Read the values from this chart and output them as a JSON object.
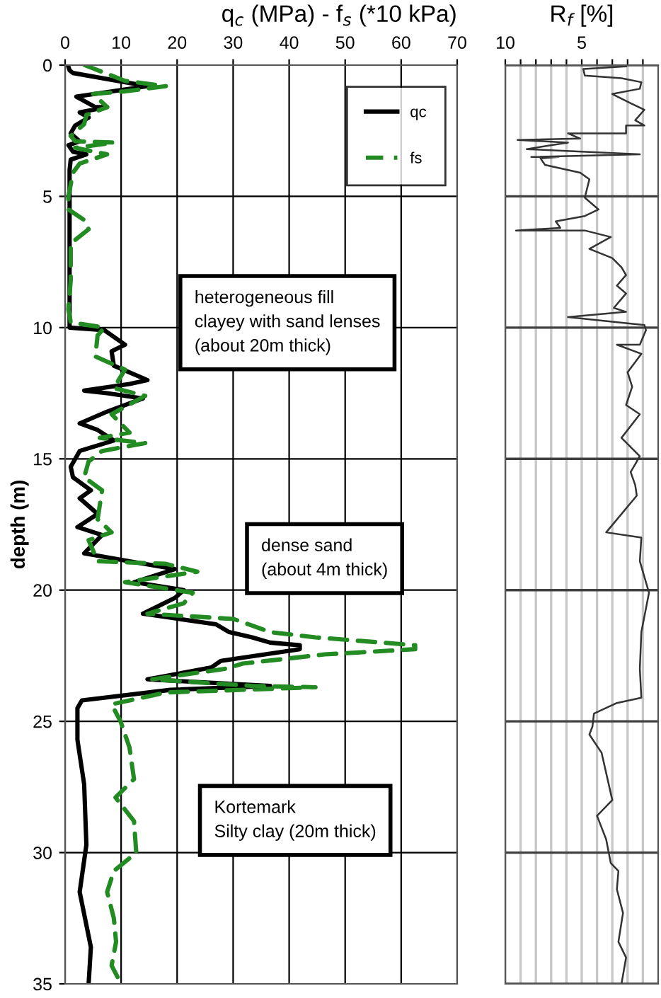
{
  "chart_data": [
    {
      "type": "line",
      "title": "q$_{c}$ (MPa) - f$_{s}$ (*10 kPa)",
      "ylabel": "depth (m)",
      "xlim": [
        0,
        70
      ],
      "xticks": [
        0,
        10,
        20,
        30,
        40,
        50,
        60,
        70
      ],
      "ylim": [
        35,
        0
      ],
      "yticks": [
        0,
        5,
        10,
        15,
        20,
        25,
        30,
        35
      ],
      "grid": true,
      "legend": "top right",
      "annotations": [
        "heterogeneous fill\nclayey with sand lenses\n(about 20m thick)",
        "dense sand\n(about 4m thick)",
        "Kortemark\nSilty clay (20m thick)"
      ],
      "series": [
        {
          "name": "qc",
          "color": "#000000",
          "line_style": "solid",
          "x": [
            0.5,
            0.8,
            1.4,
            14.7,
            2,
            5.4,
            7.5,
            2.6,
            4.2,
            1.8,
            1,
            2.6,
            0.6,
            1.4,
            3.8,
            1,
            0.8,
            0.8,
            0.8,
            7,
            10.7,
            8.3,
            8.7,
            14.7,
            11.5,
            3.4,
            7.5,
            13.9,
            7.5,
            2.6,
            5.8,
            8.7,
            2.6,
            1,
            1.4,
            4.6,
            2.6,
            5.8,
            2.2,
            6.6,
            3.4,
            11.5,
            19.6,
            12.3,
            21.2,
            19.6,
            13.9,
            20.4,
            26.9,
            29.3,
            33.4,
            36.6,
            41.9,
            41.9,
            27.8,
            26.1,
            14.7,
            36.6,
            18.8,
            3,
            2.2,
            2.2,
            3.4,
            3.8,
            2.6,
            4.6,
            4.2
          ],
          "values": [
            0,
            0.2,
            0.3,
            0.8,
            1.2,
            1.6,
            1.6,
            1.8,
            2.0,
            2.3,
            2.6,
            2.9,
            3.05,
            3.3,
            3.4,
            3.6,
            4,
            9.8,
            10,
            10.1,
            10.65,
            10.9,
            11.45,
            12,
            12.15,
            12.4,
            12.5,
            12.7,
            13.2,
            13.65,
            13.9,
            14.3,
            14.7,
            15.3,
            15.7,
            16.2,
            16.5,
            17.1,
            17.6,
            17.9,
            18.6,
            18.9,
            19.2,
            19.7,
            20.0,
            20.3,
            20.9,
            21.1,
            21.3,
            21.6,
            21.8,
            22.0,
            22.1,
            22.25,
            22.7,
            22.95,
            23.4,
            23.65,
            23.8,
            24.2,
            24.5,
            25.7,
            27.4,
            29.7,
            31.5,
            33.6,
            35
          ]
        },
        {
          "name": "fs",
          "color": "#228b22",
          "line_style": "dashed",
          "x": [
            3.5,
            10.7,
            18,
            10.7,
            5,
            7.5,
            3.8,
            3.4,
            1,
            1.8,
            8.7,
            1.8,
            7.5,
            2.6,
            1.4,
            0.6,
            0.6,
            3.4,
            4.2,
            1,
            1,
            0.6,
            1,
            7,
            5.8,
            5.4,
            10.7,
            8.7,
            14.3,
            8.3,
            11.5,
            6.2,
            14.3,
            6.6,
            4.2,
            3.4,
            6.6,
            5.8,
            8.3,
            4.2,
            5.8,
            18,
            23.6,
            10.7,
            22.8,
            21.2,
            14.7,
            30.1,
            36.6,
            44.7,
            62.5,
            62.5,
            46.3,
            31.7,
            28.5,
            15.5,
            33.4,
            44.7,
            18,
            8.3,
            9.9,
            11.5,
            12.3,
            9,
            12.3,
            12.7,
            8.7,
            7.5,
            8.7,
            9.1,
            8.3,
            10
          ],
          "values": [
            0,
            0.6,
            0.8,
            1.0,
            1.1,
            1.6,
            1.9,
            2.25,
            2.7,
            2.9,
            2.95,
            3.15,
            3.4,
            3.75,
            4.1,
            5.0,
            5.5,
            5.9,
            6.25,
            6.8,
            8.2,
            9.3,
            9.8,
            10,
            10.3,
            11.1,
            11.6,
            12.3,
            12.6,
            13.3,
            14,
            14.2,
            14.4,
            14.7,
            15.1,
            15.7,
            16.2,
            17.3,
            17.8,
            18.1,
            18.9,
            19.0,
            19.3,
            19.7,
            20.1,
            20.5,
            20.9,
            21.1,
            21.6,
            21.8,
            22.1,
            22.25,
            22.45,
            22.8,
            23.0,
            23.4,
            23.65,
            23.7,
            23.9,
            24.35,
            25,
            26,
            27.2,
            27.9,
            28.8,
            30,
            30.7,
            31.5,
            32.5,
            33.4,
            34.3,
            35
          ]
        }
      ]
    },
    {
      "type": "line",
      "title": "R$_{f}$ [%]",
      "xlim": [
        10,
        0
      ],
      "xticks": [
        10,
        5,
        {
          "value": 9,
          "label": null
        },
        {
          "value": 8,
          "label": null
        },
        {
          "value": 7,
          "label": null
        },
        {
          "value": 6,
          "label": null
        },
        {
          "value": 4,
          "label": null
        },
        {
          "value": 3,
          "label": null
        },
        {
          "value": 2,
          "label": null
        },
        {
          "value": 1,
          "label": null
        }
      ],
      "ylim": [
        35,
        0
      ],
      "yticks": [
        0,
        5,
        10,
        15,
        20,
        25,
        30,
        35
      ],
      "tick_labels": "x",
      "grid": true,
      "series": [
        {
          "color": "#333333",
          "x": [
            2.1,
            4.9,
            4.8,
            2.4,
            1.1,
            1.2,
            3,
            1.8,
            0.9,
            1.5,
            0.9,
            2.1,
            2.1,
            5.9,
            5.1,
            9.2,
            5.9,
            8.6,
            1.2,
            8.3,
            6.5,
            7.7,
            7.4,
            5.1,
            4.5,
            4.8,
            3.9,
            4.8,
            6.7,
            6.4,
            9.3,
            4.8,
            3.1,
            4.5,
            3,
            2.4,
            2.1,
            2.7,
            2.1,
            2.9,
            2.1,
            5.9,
            0.9,
            0.8,
            1.2,
            2.7,
            1.1,
            2,
            1.7,
            2.1,
            1.2,
            2.4,
            1.2,
            1.8,
            1.5,
            1.4,
            3.4,
            1.1,
            1.2,
            0.6,
            1.1,
            1.2,
            1.1,
            2.7,
            4.2,
            4.3,
            4.5,
            3.7,
            3.0,
            4.0,
            3.4,
            3.1,
            2.6,
            2.7,
            2.3,
            2.6,
            2.1,
            2.4
          ],
          "values": [
            0.05,
            0.15,
            0.4,
            0.5,
            0.65,
            0.9,
            1.1,
            1.45,
            1.7,
            2.1,
            2.3,
            2.3,
            2.6,
            2.6,
            2.8,
            2.85,
            2.95,
            3.2,
            3.4,
            3.5,
            3.5,
            3.55,
            3.8,
            4.1,
            4.35,
            5.05,
            5.5,
            5.75,
            5.95,
            6.2,
            6.3,
            6.3,
            6.55,
            7.0,
            7.35,
            7.7,
            8.0,
            8.4,
            8.7,
            9.25,
            9.4,
            9.6,
            9.9,
            10.1,
            10.65,
            10.65,
            11.0,
            11.7,
            12.25,
            12.95,
            13.3,
            14.2,
            14.9,
            15.5,
            16.0,
            16.4,
            17.8,
            18.0,
            18.9,
            20.1,
            21.6,
            23.0,
            24.1,
            24.3,
            24.7,
            25.2,
            25.5,
            26.2,
            28.0,
            28.6,
            29.5,
            30.4,
            30.7,
            31.4,
            32.3,
            33.4,
            34.0,
            35
          ]
        }
      ]
    }
  ]
}
